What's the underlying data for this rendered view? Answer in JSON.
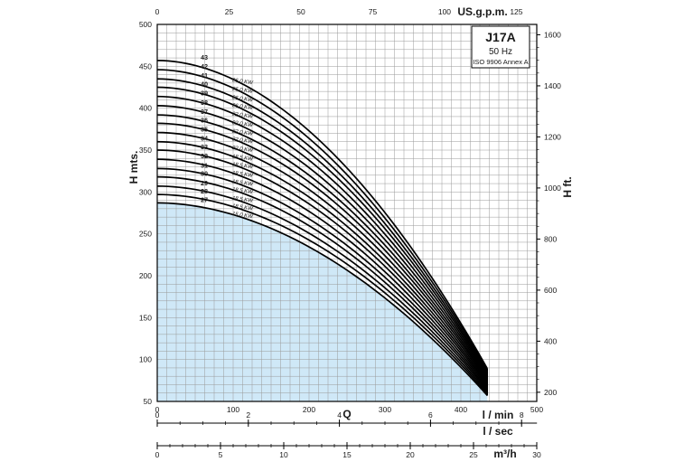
{
  "chart_data": {
    "type": "line",
    "title": "J17A",
    "subtitle_lines": [
      "50 Hz",
      "ISO 9906 Annex A"
    ],
    "ylabel": "H mts.",
    "ylabel_right": "H ft.",
    "xlabel": "Q",
    "xlim": [
      0,
      500
    ],
    "ylim": [
      50,
      500
    ],
    "grid": true,
    "x_unit_label": "l / min",
    "x_ticks": [
      0,
      100,
      200,
      300,
      400,
      500
    ],
    "y_ticks": [
      50,
      100,
      150,
      200,
      250,
      300,
      350,
      400,
      450,
      500
    ],
    "top_axis": {
      "label": "US.g.p.m.",
      "ticks": [
        0,
        25,
        50,
        75,
        100,
        125
      ]
    },
    "right_axis": {
      "ticks": [
        200,
        400,
        600,
        800,
        1000,
        1200,
        1400,
        1600
      ]
    },
    "lps_axis": {
      "label": "l / sec",
      "ticks": [
        0,
        2,
        4,
        6,
        8
      ]
    },
    "m3h_axis": {
      "label": "m³/h",
      "ticks": [
        0,
        5,
        10,
        15,
        20,
        25,
        30
      ]
    },
    "q_end": 435,
    "series": [
      {
        "name": "27",
        "power": "15.0 KW",
        "h0": 287,
        "h_end": 57
      },
      {
        "name": "28",
        "power": "18.5 KW",
        "h0": 297,
        "h_end": 59
      },
      {
        "name": "29",
        "power": "18.5 KW",
        "h0": 307,
        "h_end": 61
      },
      {
        "name": "30",
        "power": "18.5 KW",
        "h0": 318,
        "h_end": 63
      },
      {
        "name": "31",
        "power": "18.5 KW",
        "h0": 328,
        "h_end": 65
      },
      {
        "name": "32",
        "power": "18.5 KW",
        "h0": 339,
        "h_end": 67
      },
      {
        "name": "33",
        "power": "18.5 KW",
        "h0": 350,
        "h_end": 69
      },
      {
        "name": "34",
        "power": "18.5 KW",
        "h0": 360,
        "h_end": 71
      },
      {
        "name": "35",
        "power": "22.0 KW",
        "h0": 371,
        "h_end": 73
      },
      {
        "name": "36",
        "power": "22.0 KW",
        "h0": 382,
        "h_end": 75
      },
      {
        "name": "37",
        "power": "22.0 KW",
        "h0": 392,
        "h_end": 77
      },
      {
        "name": "38",
        "power": "22.0 KW",
        "h0": 403,
        "h_end": 79
      },
      {
        "name": "39",
        "power": "22.0 KW",
        "h0": 414,
        "h_end": 81
      },
      {
        "name": "40",
        "power": "26.0 KW",
        "h0": 425,
        "h_end": 83
      },
      {
        "name": "41",
        "power": "26.0 KW",
        "h0": 435,
        "h_end": 85
      },
      {
        "name": "42",
        "power": "26.0 KW",
        "h0": 446,
        "h_end": 87
      },
      {
        "name": "43",
        "power": "26.0 KW",
        "h0": 457,
        "h_end": 89
      }
    ],
    "colors": {
      "fill": "#cfe8f7",
      "curve": "#000000",
      "grid": "#9a9a9a",
      "frame": "#000000"
    }
  }
}
